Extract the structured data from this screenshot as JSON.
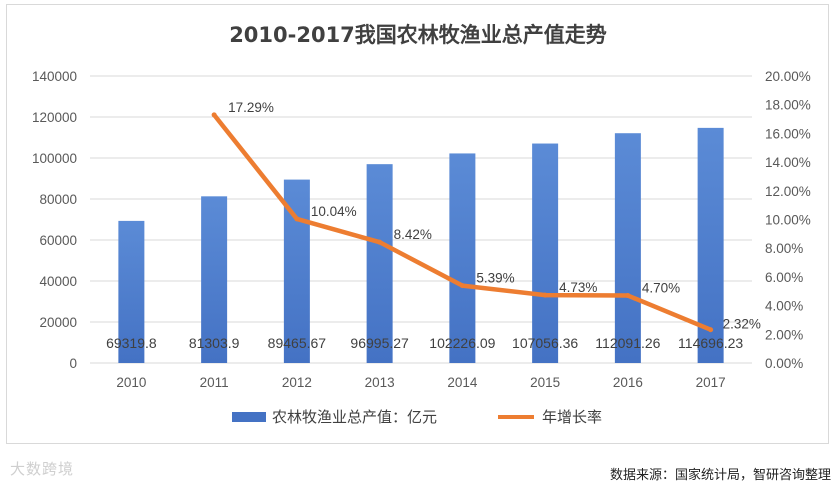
{
  "chart_data": {
    "type": "bar+line",
    "title": "2010-2017我国农林牧渔业总产值走势",
    "categories": [
      "2010",
      "2011",
      "2012",
      "2013",
      "2014",
      "2015",
      "2016",
      "2017"
    ],
    "series": [
      {
        "name": "农林牧渔业总产值：亿元",
        "type": "bar",
        "axis": "left",
        "color": "#4472c4",
        "values": [
          69319.8,
          81303.9,
          89465.67,
          96995.27,
          102226.09,
          107056.36,
          112091.26,
          114696.23
        ],
        "labels": [
          "69319.8",
          "81303.9",
          "89465.67",
          "96995.27",
          "102226.09",
          "107056.36",
          "112091.26",
          "114696.23"
        ]
      },
      {
        "name": "年增长率",
        "type": "line",
        "axis": "right",
        "color": "#ed7d31",
        "values": [
          null,
          17.29,
          10.04,
          8.42,
          5.39,
          4.73,
          4.7,
          2.32
        ],
        "labels": [
          "",
          "17.29%",
          "10.04%",
          "8.42%",
          "5.39%",
          "4.73%",
          "4.70%",
          "2.32%"
        ]
      }
    ],
    "y_left": {
      "min": 0,
      "max": 140000,
      "ticks": [
        "0",
        "20000",
        "40000",
        "60000",
        "80000",
        "100000",
        "120000",
        "140000"
      ]
    },
    "y_right": {
      "min": 0,
      "max": 20,
      "ticks": [
        "0.00%",
        "2.00%",
        "4.00%",
        "6.00%",
        "8.00%",
        "10.00%",
        "12.00%",
        "14.00%",
        "16.00%",
        "18.00%",
        "20.00%"
      ]
    },
    "grid": true,
    "legend": "bottom"
  },
  "source": "数据来源：国家统计局，智研咨询整理",
  "watermark": "大数跨境"
}
